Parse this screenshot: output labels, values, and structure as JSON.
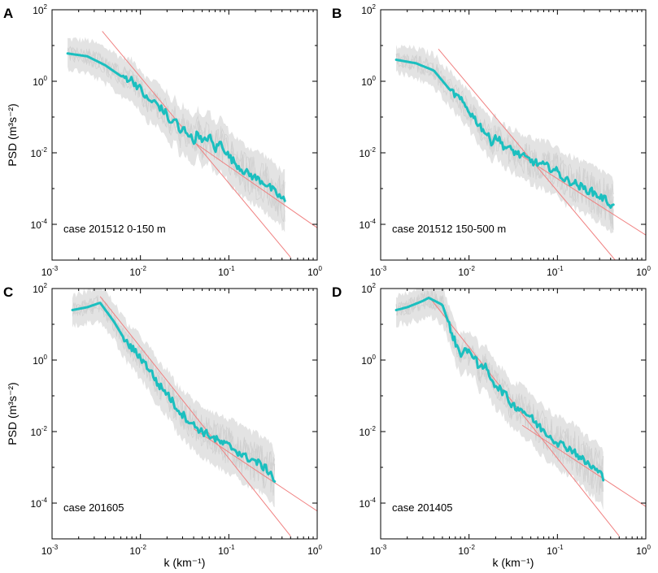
{
  "figure": {
    "colors": {
      "mean_line": "#1bbfbf",
      "fit_line": "#f08080",
      "envelope": "#e3e3e3",
      "members": "#cfcfcf"
    }
  },
  "chart_data": [
    {
      "id": "A",
      "type": "line",
      "panel_letter": "A",
      "case_label": "case 201512  0-150 m",
      "ylabel": "PSD (m³s⁻²)",
      "xlabel": "",
      "xscale": "log",
      "yscale": "log",
      "xlim": [
        0.001,
        1
      ],
      "ylim": [
        1e-05,
        100
      ],
      "xticks": [
        {
          "base": "10",
          "exp": "-3"
        },
        {
          "base": "10",
          "exp": "-2"
        },
        {
          "base": "10",
          "exp": "-1"
        },
        {
          "base": "10",
          "exp": "0"
        }
      ],
      "yticks": [
        {
          "base": "10",
          "exp": "-4"
        },
        {
          "base": "10",
          "exp": "-2"
        },
        {
          "base": "10",
          "exp": "0"
        },
        {
          "base": "10",
          "exp": "2"
        }
      ],
      "series": [
        {
          "name": "mean PSD",
          "x": [
            0.0015,
            0.0025,
            0.004,
            0.006,
            0.008,
            0.01,
            0.012,
            0.015,
            0.018,
            0.02,
            0.022,
            0.025,
            0.028,
            0.03,
            0.035,
            0.04,
            0.045,
            0.05,
            0.06,
            0.07,
            0.08,
            0.1,
            0.12,
            0.15,
            0.2,
            0.25,
            0.3,
            0.35,
            0.43
          ],
          "y": [
            6,
            5,
            2.8,
            1.4,
            1.1,
            0.6,
            0.3,
            0.25,
            0.15,
            0.12,
            0.06,
            0.1,
            0.03,
            0.05,
            0.035,
            0.02,
            0.04,
            0.018,
            0.03,
            0.012,
            0.02,
            0.008,
            0.005,
            0.003,
            0.002,
            0.0015,
            0.001,
            0.0007,
            0.00045
          ]
        }
      ],
      "envelope": {
        "lower_factor": 0.4,
        "upper_factor": 2.4
      },
      "fit_line": {
        "x": [
          0.0037,
          0.5
        ],
        "y": [
          25,
          1.2e-05
        ]
      },
      "fit_line_2": {
        "x": [
          0.04,
          1
        ],
        "y": [
          0.02,
          8e-05
        ]
      }
    },
    {
      "id": "B",
      "type": "line",
      "panel_letter": "B",
      "case_label": "case 201512  150-500 m",
      "ylabel": "",
      "xlabel": "",
      "xscale": "log",
      "yscale": "log",
      "xlim": [
        0.001,
        1
      ],
      "ylim": [
        1e-05,
        100
      ],
      "xticks": [
        {
          "base": "10",
          "exp": "-3"
        },
        {
          "base": "10",
          "exp": "-2"
        },
        {
          "base": "10",
          "exp": "-1"
        },
        {
          "base": "10",
          "exp": "0"
        }
      ],
      "yticks": [
        {
          "base": "10",
          "exp": "-4"
        },
        {
          "base": "10",
          "exp": "-2"
        },
        {
          "base": "10",
          "exp": "0"
        },
        {
          "base": "10",
          "exp": "2"
        }
      ],
      "series": [
        {
          "name": "mean PSD",
          "x": [
            0.0015,
            0.0025,
            0.004,
            0.006,
            0.008,
            0.01,
            0.012,
            0.015,
            0.018,
            0.02,
            0.025,
            0.03,
            0.04,
            0.05,
            0.06,
            0.08,
            0.1,
            0.12,
            0.15,
            0.2,
            0.25,
            0.3,
            0.35,
            0.43
          ],
          "y": [
            4,
            3.2,
            2,
            0.6,
            0.3,
            0.15,
            0.08,
            0.04,
            0.02,
            0.03,
            0.015,
            0.012,
            0.008,
            0.006,
            0.005,
            0.004,
            0.003,
            0.0018,
            0.0015,
            0.001,
            0.0008,
            0.0006,
            0.0005,
            0.0003
          ]
        }
      ],
      "envelope": {
        "lower_factor": 0.45,
        "upper_factor": 2.2
      },
      "fit_line": {
        "x": [
          0.0045,
          0.45
        ],
        "y": [
          8,
          1e-05
        ]
      },
      "fit_line_2": {
        "x": [
          0.04,
          1
        ],
        "y": [
          0.008,
          5e-05
        ]
      }
    },
    {
      "id": "C",
      "type": "line",
      "panel_letter": "C",
      "case_label": "case 201605",
      "ylabel": "PSD (m³s⁻²)",
      "xlabel": "k (km⁻¹)",
      "xscale": "log",
      "yscale": "log",
      "xlim": [
        0.001,
        1
      ],
      "ylim": [
        1e-05,
        100
      ],
      "xticks": [
        {
          "base": "10",
          "exp": "-3"
        },
        {
          "base": "10",
          "exp": "-2"
        },
        {
          "base": "10",
          "exp": "-1"
        },
        {
          "base": "10",
          "exp": "0"
        }
      ],
      "yticks": [
        {
          "base": "10",
          "exp": "-4"
        },
        {
          "base": "10",
          "exp": "-2"
        },
        {
          "base": "10",
          "exp": "0"
        },
        {
          "base": "10",
          "exp": "2"
        }
      ],
      "series": [
        {
          "name": "mean PSD",
          "x": [
            0.0017,
            0.0025,
            0.0035,
            0.005,
            0.007,
            0.01,
            0.013,
            0.016,
            0.02,
            0.025,
            0.03,
            0.04,
            0.05,
            0.06,
            0.08,
            0.1,
            0.12,
            0.15,
            0.2,
            0.25,
            0.3,
            0.33
          ],
          "y": [
            25,
            30,
            40,
            12,
            3,
            1.2,
            0.5,
            0.2,
            0.12,
            0.05,
            0.03,
            0.015,
            0.01,
            0.008,
            0.005,
            0.004,
            0.003,
            0.002,
            0.0015,
            0.001,
            0.0007,
            0.0004
          ]
        }
      ],
      "envelope": {
        "lower_factor": 0.4,
        "upper_factor": 2.5
      },
      "fit_line": {
        "x": [
          0.0035,
          0.5
        ],
        "y": [
          60,
          1.2e-05
        ]
      },
      "fit_line_2": {
        "x": [
          0.04,
          1
        ],
        "y": [
          0.012,
          6e-05
        ]
      }
    },
    {
      "id": "D",
      "type": "line",
      "panel_letter": "D",
      "case_label": "case 201405",
      "ylabel": "",
      "xlabel": "k (km⁻¹)",
      "xscale": "log",
      "yscale": "log",
      "xlim": [
        0.001,
        1
      ],
      "ylim": [
        1e-05,
        100
      ],
      "xticks": [
        {
          "base": "10",
          "exp": "-3"
        },
        {
          "base": "10",
          "exp": "-2"
        },
        {
          "base": "10",
          "exp": "-1"
        },
        {
          "base": "10",
          "exp": "0"
        }
      ],
      "yticks": [
        {
          "base": "10",
          "exp": "-4"
        },
        {
          "base": "10",
          "exp": "-2"
        },
        {
          "base": "10",
          "exp": "0"
        },
        {
          "base": "10",
          "exp": "2"
        }
      ],
      "series": [
        {
          "name": "mean PSD",
          "x": [
            0.0015,
            0.002,
            0.003,
            0.0035,
            0.005,
            0.007,
            0.008,
            0.009,
            0.01,
            0.012,
            0.013,
            0.015,
            0.018,
            0.02,
            0.025,
            0.03,
            0.04,
            0.05,
            0.06,
            0.08,
            0.1,
            0.12,
            0.15,
            0.2,
            0.25,
            0.3,
            0.33
          ],
          "y": [
            25,
            30,
            45,
            55,
            35,
            3,
            1.5,
            2,
            1.5,
            1.3,
            0.5,
            0.7,
            0.3,
            0.2,
            0.12,
            0.06,
            0.04,
            0.025,
            0.015,
            0.008,
            0.005,
            0.004,
            0.003,
            0.0015,
            0.001,
            0.0007,
            0.0005
          ]
        }
      ],
      "envelope": {
        "lower_factor": 0.4,
        "upper_factor": 2.3
      },
      "fit_line": {
        "x": [
          0.0035,
          0.5
        ],
        "y": [
          60,
          1.2e-05
        ]
      },
      "fit_line_2": {
        "x": [
          0.04,
          1
        ],
        "y": [
          0.015,
          8e-05
        ]
      }
    }
  ]
}
